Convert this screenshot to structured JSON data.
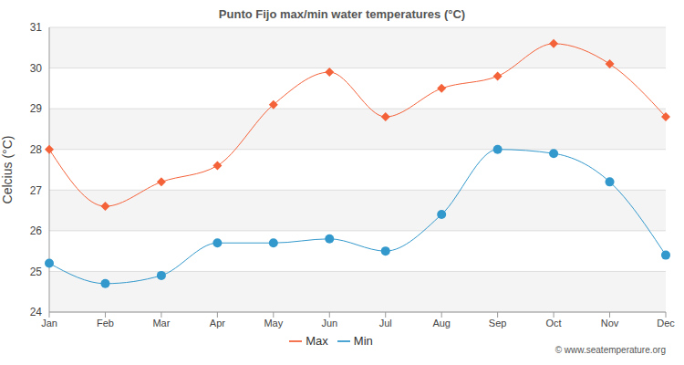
{
  "chart_data": {
    "type": "line",
    "title": "Punto Fijo max/min water temperatures (°C)",
    "y_label": "Celcius (°C)",
    "annotation": "© www.seatemperature.org",
    "categories": [
      "Jan",
      "Feb",
      "Mar",
      "Apr",
      "May",
      "Jun",
      "Jul",
      "Aug",
      "Sep",
      "Oct",
      "Nov",
      "Dec"
    ],
    "series": [
      {
        "name": "Max",
        "color": "#f4623a",
        "marker": "diamond",
        "values": [
          28.0,
          26.6,
          27.2,
          27.6,
          29.1,
          29.9,
          28.8,
          29.5,
          29.8,
          30.6,
          30.1,
          28.8
        ]
      },
      {
        "name": "Min",
        "color": "#3399cc",
        "marker": "circle",
        "values": [
          25.2,
          24.7,
          24.9,
          25.7,
          25.7,
          25.8,
          25.5,
          26.4,
          28.0,
          27.9,
          27.2,
          25.4
        ]
      }
    ],
    "ylim": [
      24,
      31
    ],
    "yticks": [
      24,
      25,
      26,
      27,
      28,
      29,
      30,
      31
    ],
    "grid": true,
    "legend": "bottom"
  }
}
